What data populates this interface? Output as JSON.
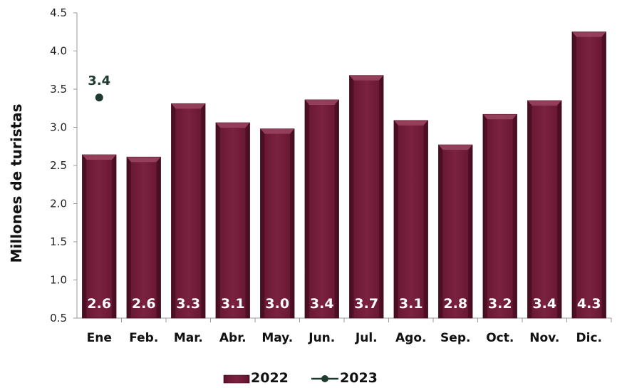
{
  "chart_data": {
    "type": "bar",
    "ylabel": "Millones de turistas",
    "ylim": [
      0.5,
      4.5
    ],
    "yticks": [
      "0.5",
      "1.0",
      "1.5",
      "2.0",
      "2.5",
      "3.0",
      "3.5",
      "4.0",
      "4.5"
    ],
    "categories": [
      "Ene",
      "Feb.",
      "Mar.",
      "Abr.",
      "May.",
      "Jun.",
      "Jul.",
      "Ago.",
      "Sep.",
      "Oct.",
      "Nov.",
      "Dic."
    ],
    "series": [
      {
        "name": "2022",
        "type": "bar",
        "color": "#6d1a36",
        "values": [
          2.64,
          2.61,
          3.31,
          3.06,
          2.98,
          3.36,
          3.68,
          3.09,
          2.77,
          3.17,
          3.35,
          4.25
        ],
        "labels": [
          "2.6",
          "2.6",
          "3.3",
          "3.1",
          "3.0",
          "3.4",
          "3.7",
          "3.1",
          "2.8",
          "3.2",
          "3.4",
          "4.3"
        ]
      },
      {
        "name": "2023",
        "type": "line",
        "color": "#1f3b30",
        "values": [
          3.39,
          null,
          null,
          null,
          null,
          null,
          null,
          null,
          null,
          null,
          null,
          null
        ],
        "labels": [
          "3.4",
          null,
          null,
          null,
          null,
          null,
          null,
          null,
          null,
          null,
          null,
          null
        ]
      }
    ],
    "legend_position": "bottom",
    "grid": false
  }
}
